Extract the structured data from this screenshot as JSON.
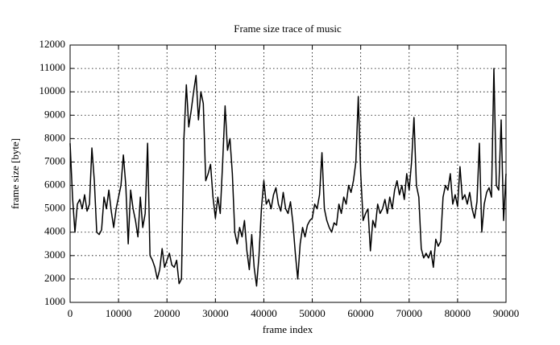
{
  "chart_data": {
    "type": "line",
    "title": "Frame size trace of music",
    "x_label": "frame index",
    "y_label": "frame size [byte]",
    "color": "#000000",
    "grid": true,
    "xlim": [
      0,
      90000
    ],
    "xticks": [
      0,
      10000,
      20000,
      30000,
      40000,
      50000,
      60000,
      70000,
      80000,
      90000
    ],
    "ylim": [
      1000,
      12000
    ],
    "yticks": [
      1000,
      2000,
      3000,
      4000,
      5000,
      6000,
      7000,
      8000,
      9000,
      10000,
      11000,
      12000
    ],
    "x": [
      0,
      500,
      1000,
      1500,
      2000,
      2500,
      3000,
      3500,
      4000,
      4500,
      5000,
      5500,
      6000,
      6500,
      7000,
      7500,
      8000,
      8500,
      9000,
      9500,
      10000,
      10500,
      11000,
      11500,
      12000,
      12500,
      13000,
      13500,
      14000,
      14500,
      15000,
      15500,
      16000,
      16500,
      17000,
      17500,
      18000,
      18500,
      19000,
      19500,
      20000,
      20500,
      21000,
      21500,
      22000,
      22500,
      23000,
      23500,
      24000,
      24500,
      25000,
      25500,
      26000,
      26500,
      27000,
      27500,
      28000,
      28500,
      29000,
      29500,
      30000,
      30500,
      31000,
      31500,
      32000,
      32500,
      33000,
      33500,
      34000,
      34500,
      35000,
      35500,
      36000,
      36500,
      37000,
      37500,
      38000,
      38500,
      39000,
      39500,
      40000,
      40500,
      41000,
      41500,
      42000,
      42500,
      43000,
      43500,
      44000,
      44500,
      45000,
      45500,
      46000,
      46500,
      47000,
      47500,
      48000,
      48500,
      49000,
      49500,
      50000,
      50500,
      51000,
      51500,
      52000,
      52500,
      53000,
      53500,
      54000,
      54500,
      55000,
      55500,
      56000,
      56500,
      57000,
      57500,
      58000,
      58500,
      59000,
      59500,
      60000,
      60500,
      61000,
      61500,
      62000,
      62500,
      63000,
      63500,
      64000,
      64500,
      65000,
      65500,
      66000,
      66500,
      67000,
      67500,
      68000,
      68500,
      69000,
      69500,
      70000,
      70500,
      71000,
      71500,
      72000,
      72500,
      73000,
      73500,
      74000,
      74500,
      75000,
      75500,
      76000,
      76500,
      77000,
      77500,
      78000,
      78500,
      79000,
      79500,
      80000,
      80500,
      81000,
      81500,
      82000,
      82500,
      83000,
      83500,
      84000,
      84500,
      85000,
      85500,
      86000,
      86500,
      87000,
      87500,
      88000,
      88500,
      89000,
      89500,
      90000
    ],
    "values": [
      7800,
      5500,
      4000,
      5200,
      5400,
      5000,
      5600,
      4900,
      5200,
      7600,
      6200,
      4000,
      3900,
      4100,
      5500,
      5000,
      5800,
      4900,
      4200,
      5000,
      5500,
      6000,
      7300,
      6000,
      3500,
      5800,
      5000,
      4500,
      3800,
      5500,
      4200,
      4800,
      7800,
      3000,
      2800,
      2500,
      2000,
      2400,
      3300,
      2500,
      2800,
      3100,
      2600,
      2500,
      2800,
      1800,
      2000,
      8000,
      10300,
      8500,
      9200,
      10000,
      10700,
      8800,
      10000,
      9500,
      6200,
      6500,
      6900,
      5500,
      4600,
      5500,
      4800,
      7000,
      9400,
      7500,
      8000,
      6500,
      4000,
      3500,
      4200,
      3800,
      4500,
      3200,
      2400,
      3900,
      2500,
      1700,
      3000,
      5000,
      6200,
      5200,
      5400,
      5000,
      5600,
      5900,
      5200,
      4900,
      5700,
      5000,
      4800,
      5300,
      4400,
      3100,
      2000,
      3500,
      4200,
      3800,
      4300,
      4500,
      4600,
      5200,
      5000,
      5600,
      7400,
      5000,
      4500,
      4200,
      4000,
      4400,
      4300,
      5200,
      4800,
      5500,
      5200,
      6000,
      5700,
      6200,
      7000,
      9800,
      6500,
      4500,
      4800,
      5000,
      3200,
      4500,
      4200,
      5200,
      4800,
      5000,
      5400,
      4800,
      5500,
      5000,
      5800,
      6200,
      5600,
      6000,
      5400,
      6500,
      5800,
      7000,
      8900,
      6000,
      5500,
      3300,
      2900,
      3100,
      2900,
      3200,
      2500,
      3700,
      3400,
      3600,
      5500,
      6000,
      5800,
      6500,
      5200,
      5600,
      5100,
      6800,
      5400,
      5600,
      5200,
      5700,
      5000,
      4600,
      5300,
      7800,
      4000,
      5200,
      5700,
      5900,
      5500,
      11000,
      6000,
      5800,
      8800,
      4500,
      6500
    ]
  }
}
